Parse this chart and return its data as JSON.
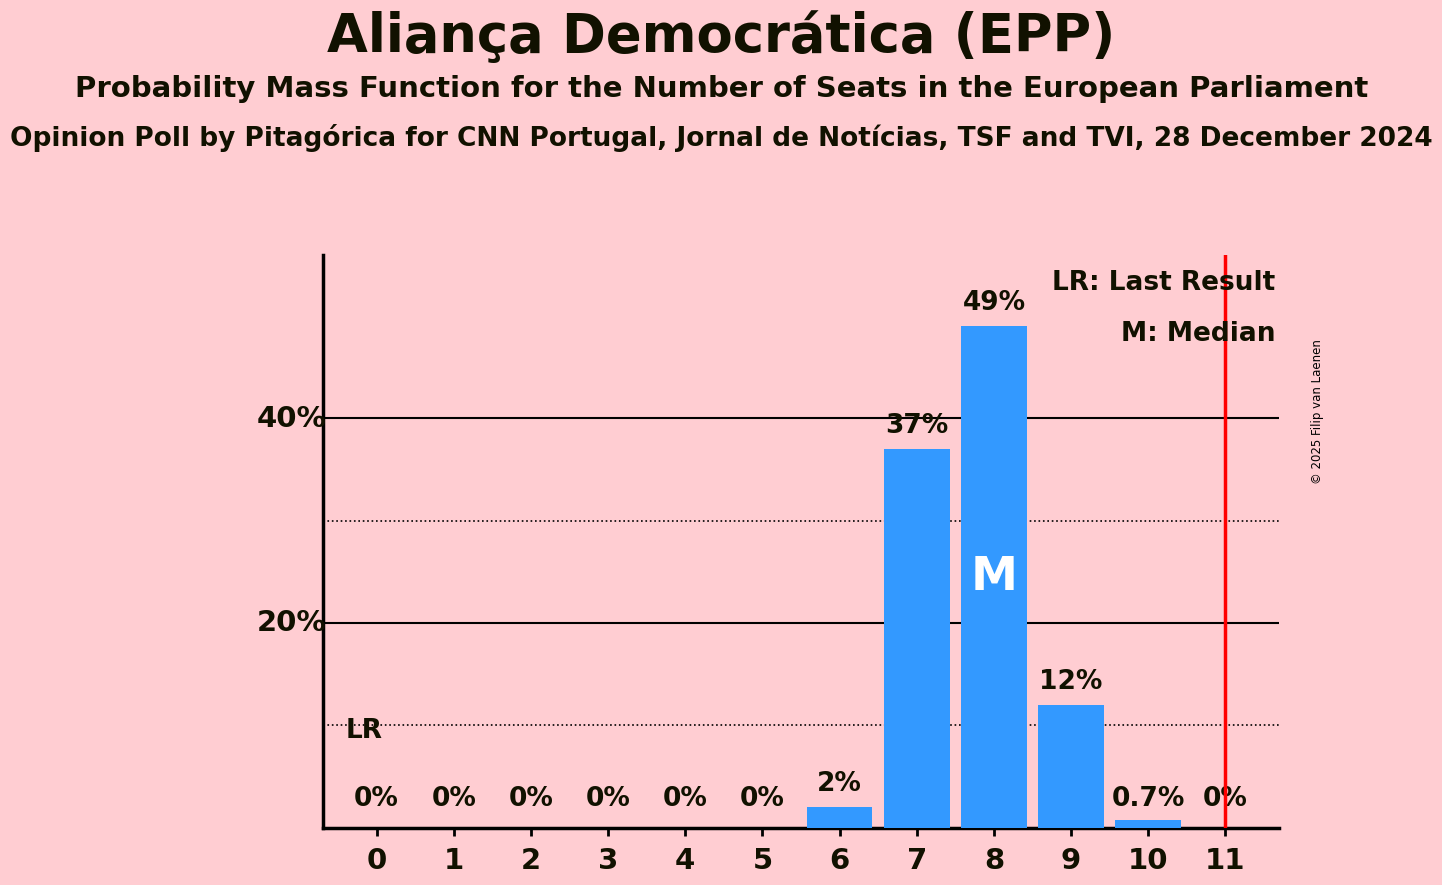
{
  "title": "Aliança Democrática (EPP)",
  "subtitle": "Probability Mass Function for the Number of Seats in the European Parliament",
  "source": "Opinion Poll by Pitagórica for CNN Portugal, Jornal de Notícias, TSF and TVI, 28 December 2024",
  "copyright": "© 2025 Filip van Laenen",
  "categories": [
    0,
    1,
    2,
    3,
    4,
    5,
    6,
    7,
    8,
    9,
    10,
    11
  ],
  "values": [
    0.0,
    0.0,
    0.0,
    0.0,
    0.0,
    0.0,
    2.0,
    37.0,
    49.0,
    12.0,
    0.7,
    0.0
  ],
  "bar_color": "#3399FF",
  "background_color": "#FFCDD2",
  "median_seat": 8,
  "lr_seat": 11,
  "lr_line_color": "red",
  "solid_gridlines": [
    20,
    40
  ],
  "dotted_gridlines": [
    10,
    30
  ],
  "ytick_labels": {
    "20": "20%",
    "40": "40%"
  },
  "ylim": [
    0,
    56
  ],
  "bar_labels": [
    "0%",
    "0%",
    "0%",
    "0%",
    "0%",
    "0%",
    "2%",
    "37%",
    "49%",
    "12%",
    "0.7%",
    "0%"
  ],
  "title_fontsize": 38,
  "subtitle_fontsize": 21,
  "source_fontsize": 19,
  "label_fontsize": 19,
  "tick_fontsize": 21,
  "legend_fontsize": 19,
  "median_fontsize": 34,
  "lr_label_fontsize": 19,
  "text_color": "#111100"
}
